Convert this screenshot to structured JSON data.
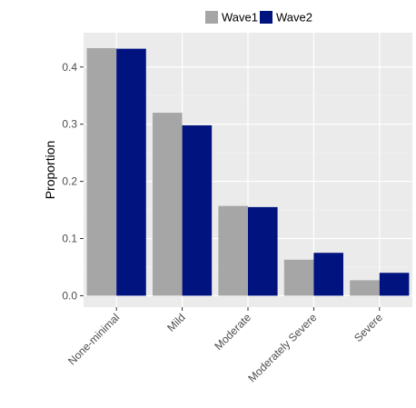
{
  "chart_data": {
    "type": "bar",
    "title": "",
    "xlabel": "",
    "ylabel": "Proportion",
    "categories": [
      "None-minimal",
      "Mild",
      "Moderate",
      "Moderately Severe",
      "Severe"
    ],
    "series": [
      {
        "name": "Wave1",
        "color": "#a6a6a6",
        "values": [
          0.433,
          0.32,
          0.157,
          0.063,
          0.027
        ]
      },
      {
        "name": "Wave2",
        "color": "#00137f",
        "values": [
          0.432,
          0.298,
          0.155,
          0.075,
          0.04
        ]
      }
    ],
    "ylim": [
      -0.02,
      0.46
    ],
    "yticks": [
      0.0,
      0.1,
      0.2,
      0.3,
      0.4
    ],
    "ytick_labels": [
      "0.0",
      "0.1",
      "0.2",
      "0.3",
      "0.4"
    ],
    "grid": true,
    "legend_position": "top"
  }
}
